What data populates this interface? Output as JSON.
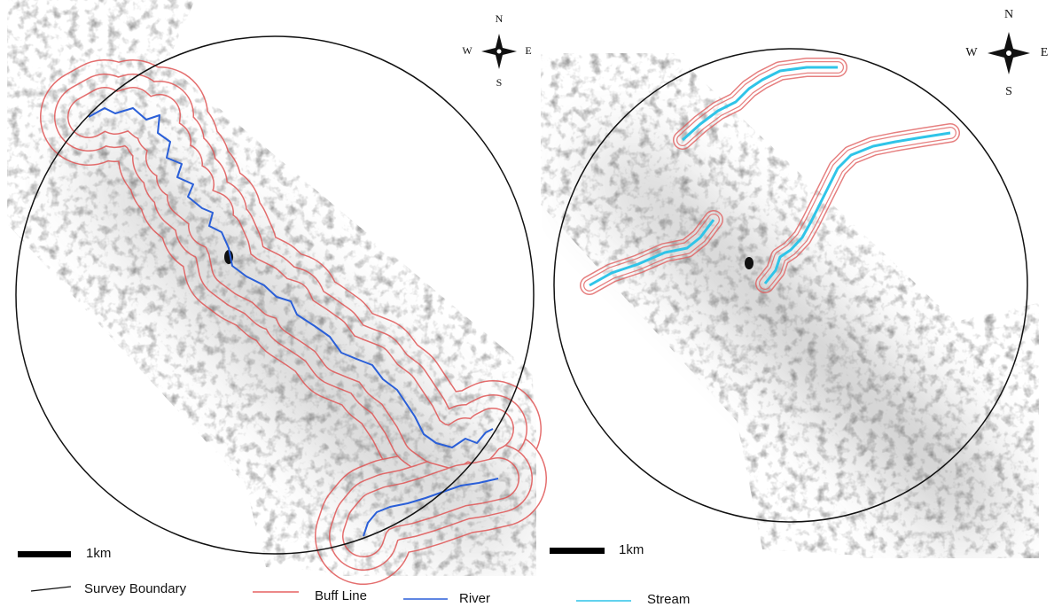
{
  "panels": [
    {
      "compass": {
        "n": "N",
        "w": "W",
        "e": "E",
        "s": "S"
      },
      "scale_label": "1km"
    },
    {
      "compass": {
        "n": "N",
        "w": "W",
        "e": "E",
        "s": "S"
      },
      "scale_label": "1km"
    }
  ],
  "legend": [
    {
      "label": "Survey Boundary"
    },
    {
      "label": "Buff Line"
    },
    {
      "label": "River"
    },
    {
      "label": "Stream"
    }
  ]
}
